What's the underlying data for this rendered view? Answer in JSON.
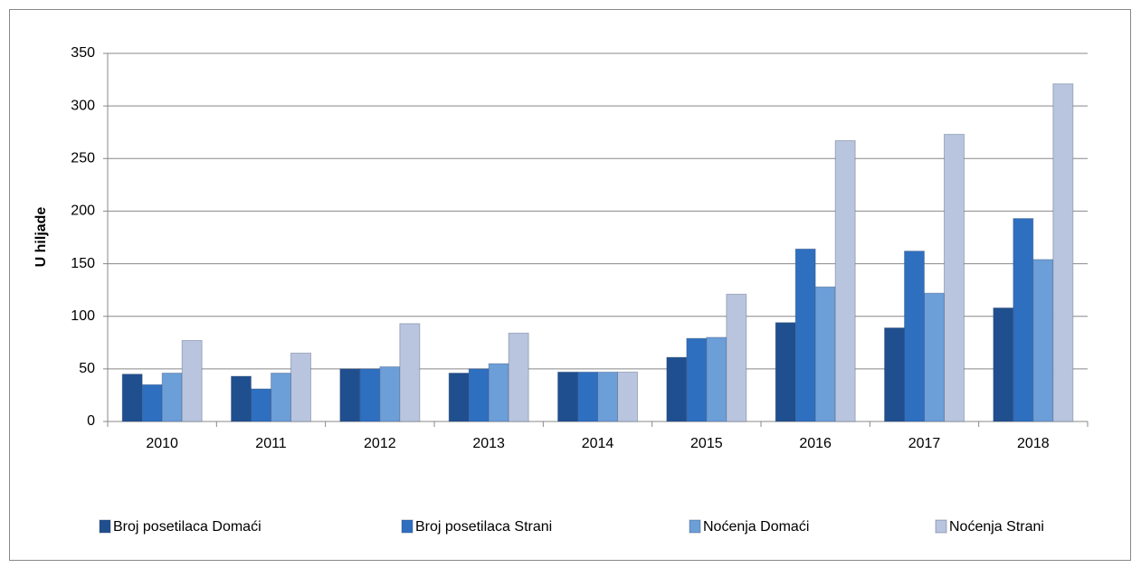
{
  "chart_data": {
    "type": "bar",
    "y_label": "U hiljade",
    "categories": [
      "2010",
      "2011",
      "2012",
      "2013",
      "2014",
      "2015",
      "2016",
      "2017",
      "2018"
    ],
    "series": [
      {
        "name": "Broj posetilaca Domaći",
        "color": "#1f4f8e",
        "values": [
          45,
          43,
          50,
          46,
          47,
          61,
          94,
          89,
          108
        ]
      },
      {
        "name": "Broj posetilaca Strani",
        "color": "#2f6fc0",
        "values": [
          35,
          31,
          50,
          50,
          47,
          79,
          164,
          162,
          193
        ]
      },
      {
        "name": "Noćenja Domaći",
        "color": "#6c9ed8",
        "values": [
          46,
          46,
          52,
          55,
          47,
          80,
          128,
          122,
          154
        ]
      },
      {
        "name": "Noćenja Strani",
        "color": "#b9c5df",
        "values": [
          77,
          65,
          93,
          84,
          47,
          121,
          267,
          273,
          321
        ]
      }
    ],
    "ylim": [
      0,
      350
    ],
    "yticks": [
      0,
      50,
      100,
      150,
      200,
      250,
      300,
      350
    ],
    "grid": true
  }
}
